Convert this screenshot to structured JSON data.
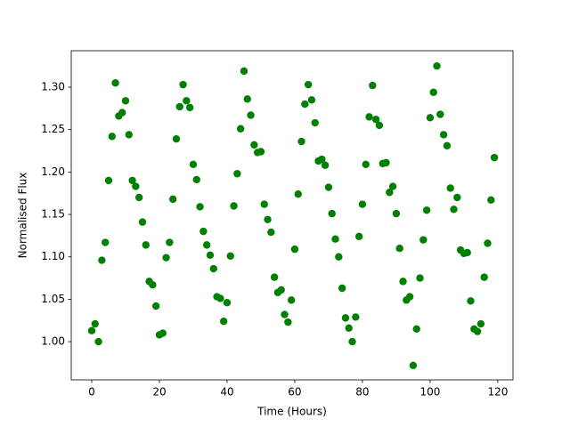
{
  "chart_data": {
    "type": "scatter",
    "xlabel": "Time (Hours)",
    "ylabel": "Normalised Flux",
    "color": "#008000",
    "x": [
      0,
      1,
      2,
      3,
      4,
      5,
      6,
      7,
      8,
      9,
      10,
      11,
      12,
      13,
      14,
      15,
      16,
      17,
      18,
      19,
      20,
      21,
      22,
      23,
      24,
      25,
      26,
      27,
      28,
      29,
      30,
      31,
      32,
      33,
      34,
      35,
      36,
      37,
      38,
      39,
      40,
      41,
      42,
      43,
      44,
      45,
      46,
      47,
      48,
      49,
      50,
      51,
      52,
      53,
      54,
      55,
      56,
      57,
      58,
      59,
      60,
      61,
      62,
      63,
      64,
      65,
      66,
      67,
      68,
      69,
      70,
      71,
      72,
      73,
      74,
      75,
      76,
      77,
      78,
      79,
      80,
      81,
      82,
      83,
      84,
      85,
      86,
      87,
      88,
      89,
      90,
      91,
      92,
      93,
      94,
      95,
      96,
      97,
      98,
      99,
      100,
      101,
      102,
      103,
      104,
      105,
      106,
      107,
      108,
      109,
      110,
      111,
      112,
      113,
      114,
      115,
      116,
      117,
      118,
      119
    ],
    "values": [
      1.013,
      1.021,
      1.0,
      1.096,
      1.117,
      1.19,
      1.242,
      1.305,
      1.266,
      1.27,
      1.284,
      1.244,
      1.19,
      1.183,
      1.17,
      1.141,
      1.114,
      1.071,
      1.067,
      1.042,
      1.008,
      1.01,
      1.099,
      1.117,
      1.168,
      1.239,
      1.277,
      1.303,
      1.284,
      1.276,
      1.209,
      1.191,
      1.159,
      1.13,
      1.114,
      1.102,
      1.086,
      1.053,
      1.051,
      1.024,
      1.046,
      1.101,
      1.16,
      1.198,
      1.251,
      1.319,
      1.286,
      1.267,
      1.232,
      1.223,
      1.224,
      1.162,
      1.144,
      1.129,
      1.076,
      1.058,
      1.061,
      1.032,
      1.023,
      1.049,
      1.109,
      1.174,
      1.236,
      1.28,
      1.303,
      1.285,
      1.258,
      1.213,
      1.215,
      1.208,
      1.182,
      1.151,
      1.121,
      1.1,
      1.063,
      1.028,
      1.016,
      1.0,
      1.029,
      1.124,
      1.162,
      1.209,
      1.265,
      1.302,
      1.262,
      1.255,
      1.21,
      1.211,
      1.176,
      1.183,
      1.151,
      1.11,
      1.071,
      1.049,
      1.053,
      0.972,
      1.015,
      1.075,
      1.12,
      1.155,
      1.264,
      1.294,
      1.325,
      1.268,
      1.244,
      1.231,
      1.181,
      1.156,
      1.17,
      1.108,
      1.104,
      1.105,
      1.048,
      1.015,
      1.012,
      1.021,
      1.076,
      1.116,
      1.167,
      1.217
    ],
    "xlim": [
      -6.05,
      124.5
    ],
    "ylim": [
      0.955,
      1.343
    ],
    "xticks": [
      0,
      20,
      40,
      60,
      80,
      100,
      120
    ],
    "yticks": [
      {
        "value": 1.0,
        "label": "1.00"
      },
      1.05,
      {
        "value": 1.1,
        "label": "1.10"
      },
      1.15,
      {
        "value": 1.2,
        "label": "1.20"
      },
      1.25,
      {
        "value": 1.3,
        "label": "1.30"
      }
    ]
  }
}
